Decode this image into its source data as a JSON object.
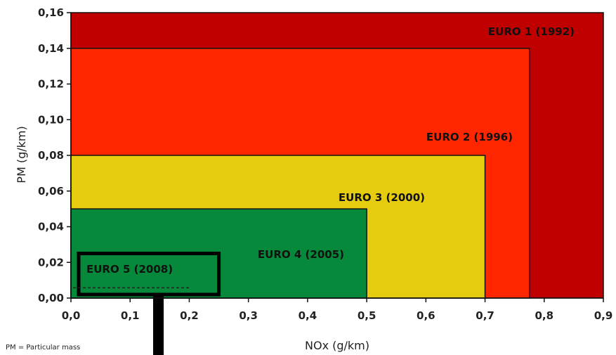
{
  "chart_data": {
    "type": "area",
    "xlabel": "NOx (g/km)",
    "ylabel": "PM (g/km)",
    "xlim": [
      0,
      0.9
    ],
    "ylim": [
      0,
      0.16
    ],
    "x_ticks": [
      "0,0",
      "0,1",
      "0,2",
      "0,3",
      "0,4",
      "0,5",
      "0,6",
      "0,7",
      "0,8",
      "0,9"
    ],
    "y_ticks": [
      "0,00",
      "0,02",
      "0,04",
      "0,06",
      "0,08",
      "0,10",
      "0,12",
      "0,14",
      "0,16"
    ],
    "series": [
      {
        "name": "EURO 1 (1992)",
        "nox": 0.9,
        "pm": 0.16,
        "color": "#c00000"
      },
      {
        "name": "EURO 2 (1996)",
        "nox": 0.775,
        "pm": 0.14,
        "color": "#ff2600"
      },
      {
        "name": "EURO 3 (2000)",
        "nox": 0.7,
        "pm": 0.08,
        "color": "#e6cc0f"
      },
      {
        "name": "EURO 4 (2005)",
        "nox": 0.5,
        "pm": 0.05,
        "color": "#06893a"
      },
      {
        "name": "EURO 5 (2008)",
        "nox": 0.25,
        "pm": 0.025,
        "color": "none"
      }
    ],
    "euro5_dashed_limit": {
      "nox": 0.2,
      "pm": 0.005
    },
    "footnote": "PM = Particular mass"
  }
}
